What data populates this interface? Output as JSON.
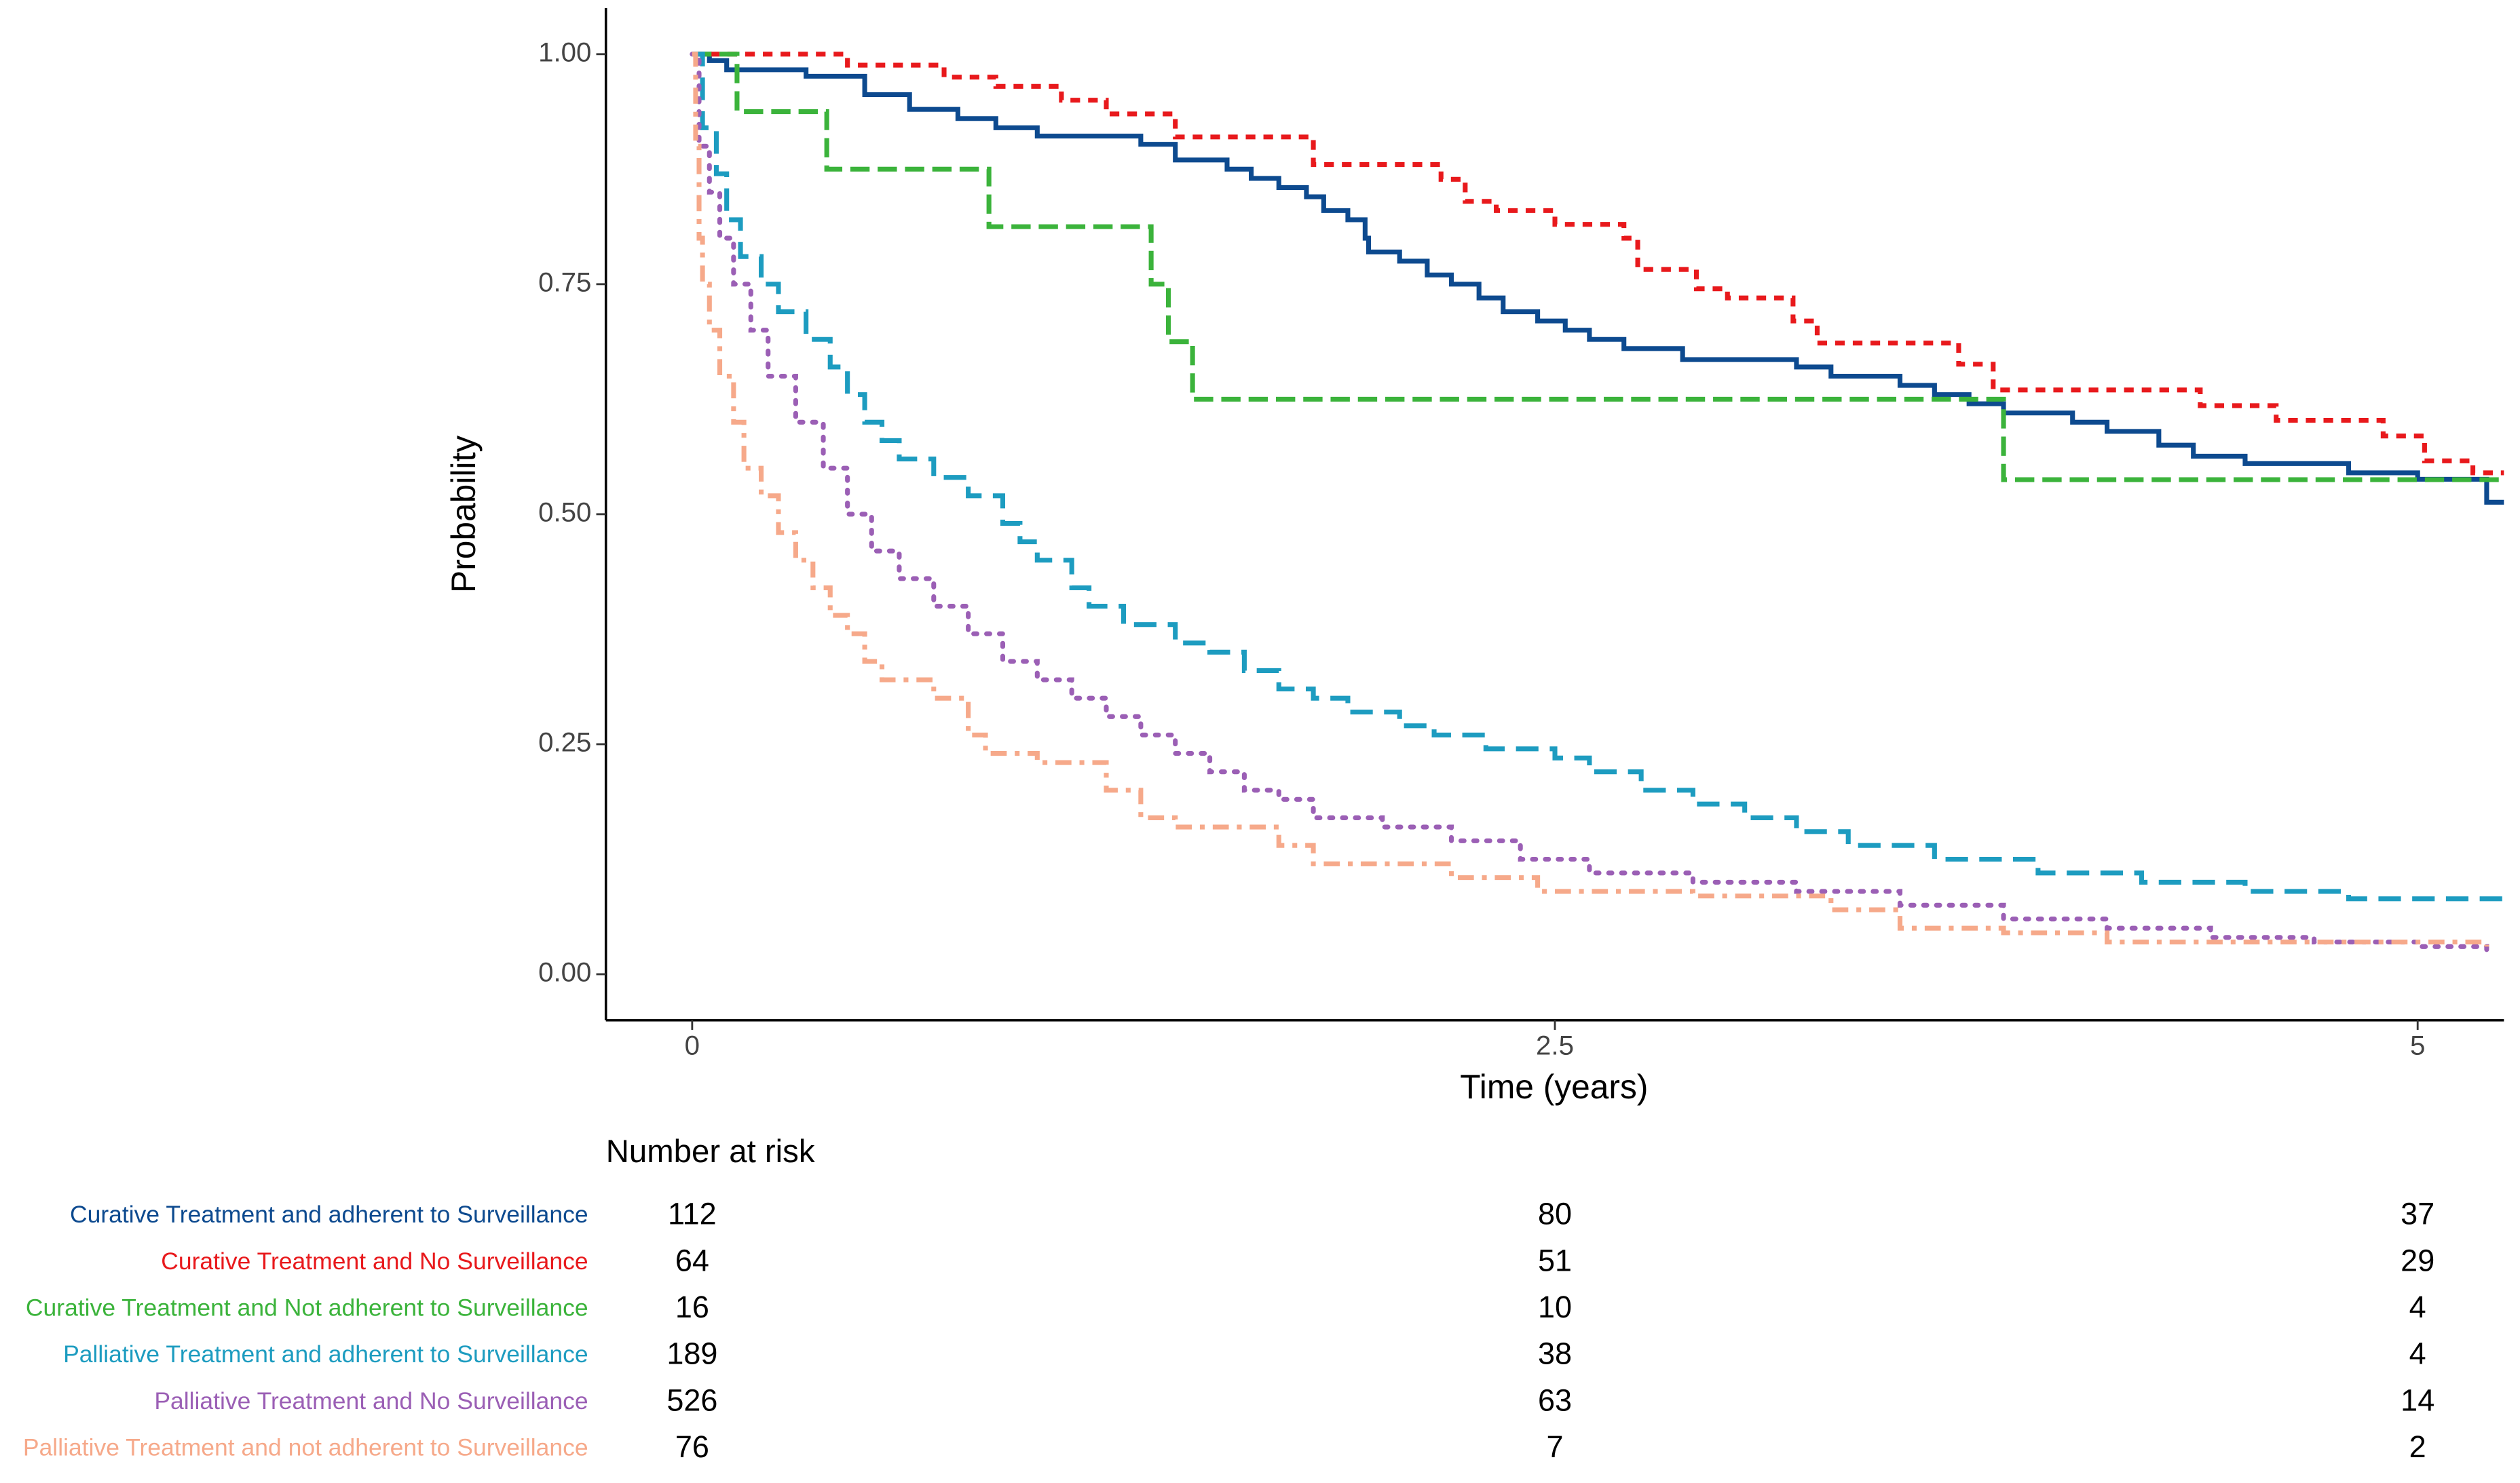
{
  "chart_data": {
    "type": "step",
    "x_label": "Time (years)",
    "y_label": "Probability",
    "xlim": [
      -0.25,
      5.25
    ],
    "ylim": [
      -0.05,
      1.05
    ],
    "xticks": [
      0,
      2.5,
      5
    ],
    "yticks": [
      {
        "value": 0,
        "label": "0.00"
      },
      {
        "value": 0.25,
        "label": "0.25"
      },
      {
        "value": 0.5,
        "label": "0.50"
      },
      {
        "value": 0.75,
        "label": "0.75"
      },
      {
        "value": 1,
        "label": "1.00"
      }
    ],
    "risk_title": "Number at risk",
    "series": [
      {
        "name": "Curative Treatment and adherent to Surveillance",
        "color": "#0d4a8f",
        "dash": "none",
        "at_risk": [
          112,
          80,
          37
        ],
        "x": [
          0,
          0.05,
          0.1,
          0.33,
          0.5,
          0.63,
          0.77,
          0.88,
          1.0,
          1.3,
          1.4,
          1.55,
          1.62,
          1.7,
          1.78,
          1.83,
          1.9,
          1.95,
          1.96,
          2.05,
          2.13,
          2.2,
          2.28,
          2.35,
          2.45,
          2.53,
          2.6,
          2.7,
          2.87,
          3.2,
          3.3,
          3.5,
          3.6,
          3.7,
          3.8,
          4.0,
          4.1,
          4.25,
          4.35,
          4.5,
          4.8,
          5.0,
          5.2,
          5.25
        ],
        "values": [
          1.0,
          0.993,
          0.983,
          0.976,
          0.956,
          0.94,
          0.93,
          0.92,
          0.911,
          0.902,
          0.885,
          0.875,
          0.865,
          0.855,
          0.845,
          0.83,
          0.82,
          0.8,
          0.785,
          0.775,
          0.76,
          0.75,
          0.735,
          0.72,
          0.71,
          0.7,
          0.69,
          0.68,
          0.668,
          0.66,
          0.65,
          0.64,
          0.63,
          0.62,
          0.61,
          0.6,
          0.59,
          0.575,
          0.563,
          0.555,
          0.545,
          0.538,
          0.513,
          0.513
        ]
      },
      {
        "name": "Curative Treatment and No Surveillance",
        "color": "#e8191c",
        "dash": "6,5",
        "at_risk": [
          64,
          51,
          29
        ],
        "x": [
          0,
          0.45,
          0.73,
          0.88,
          1.07,
          1.2,
          1.4,
          1.8,
          2.17,
          2.24,
          2.33,
          2.5,
          2.7,
          2.74,
          2.91,
          3.0,
          3.19,
          3.26,
          3.67,
          3.77,
          4.37,
          4.59,
          4.9,
          5.02,
          5.16,
          5.25
        ],
        "values": [
          1.0,
          0.988,
          0.975,
          0.965,
          0.95,
          0.935,
          0.91,
          0.88,
          0.864,
          0.84,
          0.83,
          0.815,
          0.8,
          0.766,
          0.745,
          0.735,
          0.71,
          0.686,
          0.663,
          0.635,
          0.618,
          0.602,
          0.585,
          0.558,
          0.545,
          0.545
        ]
      },
      {
        "name": "Curative Treatment and Not adherent to Surveillance",
        "color": "#3bb33b",
        "dash": "12,5",
        "at_risk": [
          16,
          10,
          4
        ],
        "x": [
          0,
          0.13,
          0.39,
          0.86,
          1.33,
          1.38,
          1.45,
          3.8,
          5.25
        ],
        "values": [
          1.0,
          0.9375,
          0.875,
          0.8125,
          0.75,
          0.6875,
          0.625,
          0.5375,
          0.5375
        ]
      },
      {
        "name": "Palliative Treatment and adherent to Surveillance",
        "color": "#1d9cc0",
        "dash": "14,7",
        "at_risk": [
          189,
          38,
          4
        ],
        "x": [
          0,
          0.03,
          0.07,
          0.1,
          0.14,
          0.2,
          0.25,
          0.33,
          0.4,
          0.45,
          0.5,
          0.55,
          0.6,
          0.7,
          0.8,
          0.9,
          0.95,
          1.0,
          1.1,
          1.15,
          1.25,
          1.4,
          1.5,
          1.6,
          1.7,
          1.8,
          1.9,
          2.05,
          2.15,
          2.3,
          2.5,
          2.6,
          2.75,
          2.9,
          3.05,
          3.2,
          3.35,
          3.6,
          3.9,
          4.2,
          4.5,
          4.8,
          5.25
        ],
        "values": [
          1.0,
          0.92,
          0.87,
          0.82,
          0.78,
          0.75,
          0.72,
          0.69,
          0.66,
          0.63,
          0.6,
          0.58,
          0.56,
          0.54,
          0.52,
          0.49,
          0.47,
          0.45,
          0.42,
          0.4,
          0.38,
          0.36,
          0.35,
          0.33,
          0.31,
          0.3,
          0.285,
          0.27,
          0.26,
          0.245,
          0.235,
          0.22,
          0.2,
          0.185,
          0.17,
          0.155,
          0.14,
          0.125,
          0.11,
          0.1,
          0.09,
          0.082,
          0.082
        ]
      },
      {
        "name": "Palliative Treatment and No Surveillance",
        "color": "#9b5fb5",
        "dash": "2,6",
        "at_risk": [
          526,
          63,
          14
        ],
        "x": [
          0,
          0.02,
          0.05,
          0.08,
          0.12,
          0.17,
          0.22,
          0.3,
          0.38,
          0.45,
          0.52,
          0.6,
          0.7,
          0.8,
          0.9,
          1.0,
          1.1,
          1.2,
          1.3,
          1.4,
          1.5,
          1.6,
          1.7,
          1.8,
          2.0,
          2.2,
          2.4,
          2.6,
          2.9,
          3.2,
          3.5,
          3.8,
          4.1,
          4.4,
          4.7,
          5.0,
          5.2
        ],
        "values": [
          1.0,
          0.9,
          0.85,
          0.8,
          0.75,
          0.7,
          0.65,
          0.6,
          0.55,
          0.5,
          0.46,
          0.43,
          0.4,
          0.37,
          0.34,
          0.32,
          0.3,
          0.28,
          0.26,
          0.24,
          0.22,
          0.2,
          0.19,
          0.17,
          0.16,
          0.145,
          0.125,
          0.11,
          0.1,
          0.09,
          0.075,
          0.06,
          0.05,
          0.04,
          0.035,
          0.03,
          0.025
        ]
      },
      {
        "name": "Palliative Treatment and not adherent to Surveillance",
        "color": "#f6a98a",
        "dash": "10,5,3,5",
        "at_risk": [
          76,
          7,
          2
        ],
        "x": [
          0,
          0.01,
          0.02,
          0.03,
          0.05,
          0.08,
          0.12,
          0.15,
          0.2,
          0.25,
          0.3,
          0.35,
          0.4,
          0.45,
          0.5,
          0.55,
          0.7,
          0.8,
          0.85,
          1.0,
          1.2,
          1.3,
          1.4,
          1.7,
          1.8,
          2.2,
          2.45,
          2.9,
          3.3,
          3.5,
          3.8,
          4.1,
          5.2
        ],
        "values": [
          1.0,
          0.9,
          0.8,
          0.75,
          0.7,
          0.65,
          0.6,
          0.55,
          0.52,
          0.48,
          0.45,
          0.42,
          0.39,
          0.37,
          0.34,
          0.32,
          0.3,
          0.26,
          0.24,
          0.23,
          0.2,
          0.17,
          0.16,
          0.14,
          0.12,
          0.105,
          0.09,
          0.085,
          0.07,
          0.05,
          0.045,
          0.035,
          0.03
        ]
      }
    ]
  }
}
